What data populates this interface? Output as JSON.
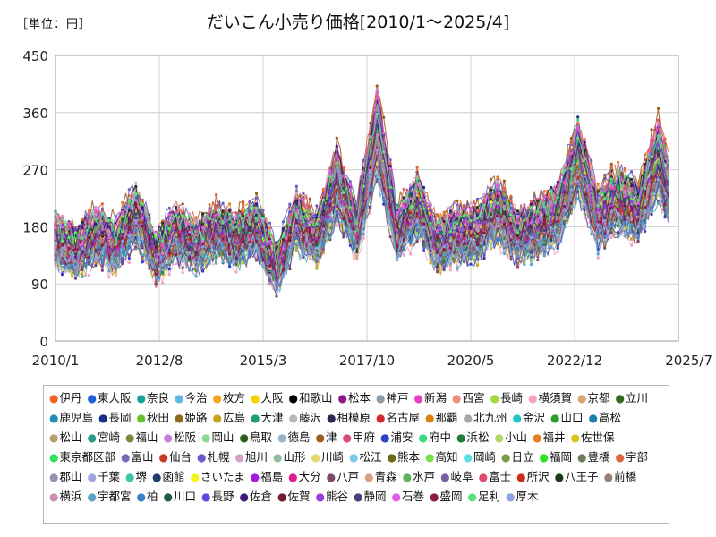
{
  "chart_data": {
    "type": "line",
    "unit_label": "［単位：円］",
    "title": "だいこん小売り価格[2010/1～2025/4]",
    "xlabel": "",
    "ylabel": "",
    "ylim": [
      0,
      450
    ],
    "yticks": [
      "0",
      "90",
      "180",
      "270",
      "360",
      "450"
    ],
    "xlim": [
      "2010/1",
      "2025/7"
    ],
    "xticks": [
      "2010/1",
      "2012/8",
      "2015/3",
      "2017/10",
      "2020/5",
      "2022/12",
      "2025/7"
    ],
    "grid": true,
    "legend_position": "bottom",
    "reference_series": {
      "x": [
        "2010/1",
        "2010/7",
        "2011/1",
        "2011/7",
        "2012/1",
        "2012/7",
        "2013/1",
        "2013/7",
        "2014/1",
        "2014/7",
        "2015/1",
        "2015/7",
        "2016/1",
        "2016/7",
        "2017/1",
        "2017/7",
        "2018/1",
        "2018/7",
        "2019/1",
        "2019/7",
        "2020/1",
        "2020/7",
        "2021/1",
        "2021/7",
        "2022/1",
        "2022/7",
        "2023/1",
        "2023/7",
        "2024/1",
        "2024/7",
        "2025/1",
        "2025/4"
      ],
      "y": [
        160,
        140,
        170,
        150,
        200,
        135,
        170,
        150,
        175,
        160,
        180,
        115,
        190,
        160,
        250,
        175,
        330,
        170,
        215,
        150,
        170,
        170,
        205,
        165,
        180,
        200,
        290,
        195,
        225,
        205,
        290,
        240
      ]
    }
  },
  "legend": [
    {
      "name": "伊丹",
      "color": "#f26522"
    },
    {
      "name": "東大阪",
      "color": "#1f5fd6"
    },
    {
      "name": "奈良",
      "color": "#1aa39a"
    },
    {
      "name": "今治",
      "color": "#5db8e8"
    },
    {
      "name": "枚方",
      "color": "#f5a623"
    },
    {
      "name": "大阪",
      "color": "#f5d200"
    },
    {
      "name": "和歌山",
      "color": "#000000"
    },
    {
      "name": "松本",
      "color": "#8b1a8b"
    },
    {
      "name": "神戸",
      "color": "#8c9ba5"
    },
    {
      "name": "新潟",
      "color": "#e83ec1"
    },
    {
      "name": "西宮",
      "color": "#f08c7a"
    },
    {
      "name": "長崎",
      "color": "#a3d93c"
    },
    {
      "name": "横須賀",
      "color": "#f5a3c7"
    },
    {
      "name": "京都",
      "color": "#d9a66f"
    },
    {
      "name": "立川",
      "color": "#2e6b1e"
    },
    {
      "name": "鹿児島",
      "color": "#1f8fb3"
    },
    {
      "name": "長岡",
      "color": "#1a2f8c"
    },
    {
      "name": "秋田",
      "color": "#6abf2e"
    },
    {
      "name": "姫路",
      "color": "#8c6b1a"
    },
    {
      "name": "広島",
      "color": "#c9a21a"
    },
    {
      "name": "大津",
      "color": "#1f9d77"
    },
    {
      "name": "藤沢",
      "color": "#b8b8b8"
    },
    {
      "name": "相模原",
      "color": "#2b2b4f"
    },
    {
      "name": "名古屋",
      "color": "#d6262e"
    },
    {
      "name": "那覇",
      "color": "#e07f12"
    },
    {
      "name": "北九州",
      "color": "#a6a6a6"
    },
    {
      "name": "金沢",
      "color": "#1fc7c7"
    },
    {
      "name": "山口",
      "color": "#2c9e2c"
    },
    {
      "name": "高松",
      "color": "#1f7fa8"
    },
    {
      "name": "松山",
      "color": "#b3a06b"
    },
    {
      "name": "宮崎",
      "color": "#2a9a8a"
    },
    {
      "name": "福山",
      "color": "#7a8c3a"
    },
    {
      "name": "松阪",
      "color": "#c77fd9"
    },
    {
      "name": "岡山",
      "color": "#8fd98f"
    },
    {
      "name": "鳥取",
      "color": "#2a5c1a"
    },
    {
      "name": "徳島",
      "color": "#9bb3c9"
    },
    {
      "name": "津",
      "color": "#9c5a1e"
    },
    {
      "name": "甲府",
      "color": "#d94a7a"
    },
    {
      "name": "浦安",
      "color": "#2b3fc7"
    },
    {
      "name": "府中",
      "color": "#3dd97a"
    },
    {
      "name": "浜松",
      "color": "#1f7a3d"
    },
    {
      "name": "小山",
      "color": "#b3d966"
    },
    {
      "name": "福井",
      "color": "#e67e22"
    },
    {
      "name": "佐世保",
      "color": "#d9c41a"
    },
    {
      "name": "東京都区部",
      "color": "#2ee05c"
    },
    {
      "name": "富山",
      "color": "#7a6bb3"
    },
    {
      "name": "仙台",
      "color": "#c23b22"
    },
    {
      "name": "札幌",
      "color": "#6b5cc7"
    },
    {
      "name": "旭川",
      "color": "#d9a0c7"
    },
    {
      "name": "山形",
      "color": "#8fbf9f"
    },
    {
      "name": "川崎",
      "color": "#e6d96b"
    },
    {
      "name": "松江",
      "color": "#7fc7e6"
    },
    {
      "name": "熊本",
      "color": "#6b6b1a"
    },
    {
      "name": "高知",
      "color": "#7ae04a"
    },
    {
      "name": "岡崎",
      "color": "#5ce0e6"
    },
    {
      "name": "日立",
      "color": "#7a9c4a"
    },
    {
      "name": "福岡",
      "color": "#2ee02e"
    },
    {
      "name": "豊橋",
      "color": "#6b7f5c"
    },
    {
      "name": "宇部",
      "color": "#e0643d"
    },
    {
      "name": "郡山",
      "color": "#9a8fb3"
    },
    {
      "name": "千葉",
      "color": "#a3a3e0"
    },
    {
      "name": "堺",
      "color": "#3ac7a3"
    },
    {
      "name": "函館",
      "color": "#1f3d6b"
    },
    {
      "name": "さいたま",
      "color": "#f5f51a"
    },
    {
      "name": "福島",
      "color": "#a31ae0"
    },
    {
      "name": "大分",
      "color": "#e01a8f"
    },
    {
      "name": "八戸",
      "color": "#7a4a6b"
    },
    {
      "name": "青森",
      "color": "#d9a07f"
    },
    {
      "name": "水戸",
      "color": "#5cb35c"
    },
    {
      "name": "岐阜",
      "color": "#7a5ca3"
    },
    {
      "name": "富士",
      "color": "#e04a6b"
    },
    {
      "name": "所沢",
      "color": "#c72e1a"
    },
    {
      "name": "八王子",
      "color": "#1a3d1a"
    },
    {
      "name": "前橋",
      "color": "#9a7f7a"
    },
    {
      "name": "横浜",
      "color": "#c78fb3"
    },
    {
      "name": "宇都宮",
      "color": "#5ca3c7"
    },
    {
      "name": "柏",
      "color": "#3d7fc7"
    },
    {
      "name": "川口",
      "color": "#1a5c4a"
    },
    {
      "name": "長野",
      "color": "#5c4ae0"
    },
    {
      "name": "佐倉",
      "color": "#3d1a7a"
    },
    {
      "name": "佐賀",
      "color": "#7a1a2e"
    },
    {
      "name": "熊谷",
      "color": "#9a3de0"
    },
    {
      "name": "静岡",
      "color": "#4a3d7a"
    },
    {
      "name": "石巻",
      "color": "#e05ce0"
    },
    {
      "name": "盛岡",
      "color": "#8f1a4a"
    },
    {
      "name": "足利",
      "color": "#5ce07a"
    },
    {
      "name": "厚木",
      "color": "#8fa3e0"
    }
  ]
}
